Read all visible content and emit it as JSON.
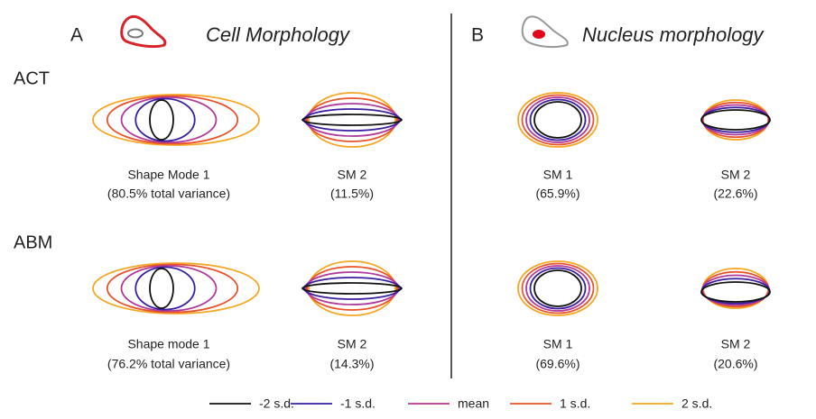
{
  "panels": [
    {
      "letter": "A",
      "title": "Cell Morphology"
    },
    {
      "letter": "B",
      "title": "Nucleus morphology"
    }
  ],
  "rows": [
    {
      "name": "ACT",
      "modes": [
        {
          "label": "Shape Mode 1",
          "detail": "(80.5% total variance)"
        },
        {
          "label": "SM 2",
          "detail": "(11.5%)"
        },
        {
          "label": "SM 1",
          "detail": "(65.9%)"
        },
        {
          "label": "SM 2",
          "detail": "(22.6%)"
        }
      ]
    },
    {
      "name": "ABM",
      "modes": [
        {
          "label": "Shape mode 1",
          "detail": "(76.2% total variance)"
        },
        {
          "label": "SM 2",
          "detail": "(14.3%)"
        },
        {
          "label": "SM 1",
          "detail": "(69.6%)"
        },
        {
          "label": "SM 2",
          "detail": "(20.6%)"
        }
      ]
    }
  ],
  "legend": [
    "-2 s.d.",
    "-1 s.d.",
    "mean",
    "1 s.d.",
    "2 s.d."
  ]
}
